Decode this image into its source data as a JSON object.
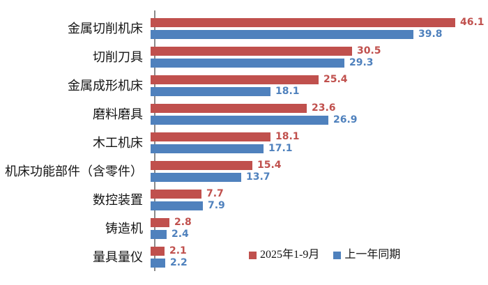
{
  "chart_data": {
    "type": "bar",
    "orientation": "horizontal",
    "title": "",
    "xlabel": "",
    "ylabel": "",
    "grid": false,
    "legend_position": "bottom",
    "value_labels": true,
    "xlim": [
      0,
      50
    ],
    "categories": [
      "金属切削机床",
      "切削刀具",
      "金属成形机床",
      "磨料磨具",
      "木工机床",
      "机床功能部件（含零件）",
      "数控装置",
      "铸造机",
      "量具量仪"
    ],
    "series": [
      {
        "name": "2025年1-9月",
        "color": "#c0504d",
        "values": [
          46.1,
          30.5,
          25.4,
          23.6,
          18.1,
          15.4,
          7.7,
          2.8,
          2.1
        ]
      },
      {
        "name": "上一年同期",
        "color": "#4f81bd",
        "values": [
          39.8,
          29.3,
          18.1,
          26.9,
          17.1,
          13.7,
          7.9,
          2.4,
          2.2
        ]
      }
    ],
    "axis_line_color": "#8a8a8a"
  }
}
